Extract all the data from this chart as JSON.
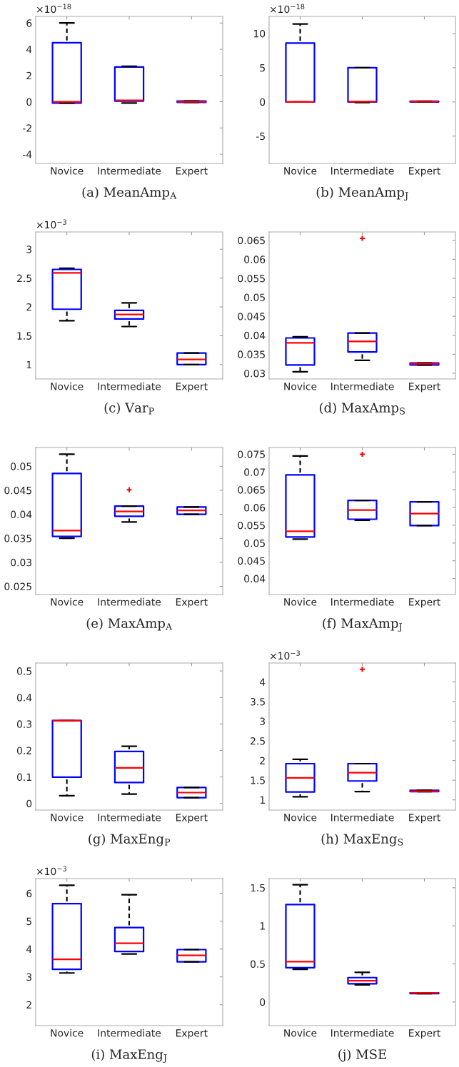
{
  "chart_data": [
    {
      "type": "box",
      "title": "(a) MeanAmp$_{A}$",
      "annotations": [
        "×10$^{−18}$"
      ],
      "categories": [
        "Novice",
        "Intermediate",
        "Expert"
      ],
      "ylim": [
        -4.7,
        6.5
      ],
      "yticks": [
        -4,
        -2,
        0,
        2,
        4,
        6
      ],
      "grid": false,
      "series": [
        {
          "color": "#0000ff",
          "boxes": [
            {
              "low": -0.1,
              "q1": -0.1,
              "median": 0,
              "q3": 4.5,
              "high": 6
            },
            {
              "low": -0.1,
              "q1": 0.05,
              "median": 0.1,
              "q3": 2.65,
              "high": 2.7
            },
            {
              "low": -0.05,
              "q1": -0.05,
              "median": 0,
              "q3": 0.05,
              "high": 0.05
            }
          ]
        }
      ]
    },
    {
      "type": "box",
      "title": "(b) MeanAmp$_{J}$",
      "annotations": [
        "×10$^{−18}$"
      ],
      "categories": [
        "Novice",
        "Intermediate",
        "Expert"
      ],
      "ylim": [
        -9,
        12.5
      ],
      "yticks": [
        -5,
        0,
        5,
        10
      ],
      "grid": false,
      "series": [
        {
          "color": "#0000ff",
          "boxes": [
            {
              "low": 0,
              "q1": 0,
              "median": 0,
              "q3": 8.6,
              "high": 11.4
            },
            {
              "low": -0.1,
              "q1": 0,
              "median": 0.05,
              "q3": 5,
              "high": 5
            },
            {
              "low": 0,
              "q1": 0,
              "median": 0.05,
              "q3": 0.1,
              "high": 0.1
            }
          ]
        }
      ]
    },
    {
      "type": "box",
      "title": "(c) Var$_{P}$",
      "annotations": [
        "×10$^{−3}$"
      ],
      "categories": [
        "Novice",
        "Intermediate",
        "Expert"
      ],
      "ylim": [
        0.75,
        3.3
      ],
      "yticks": [
        1,
        1.5,
        2,
        2.5,
        3
      ],
      "grid": false,
      "series": [
        {
          "color": "#0000ff",
          "boxes": [
            {
              "low": 1.76,
              "q1": 1.96,
              "median": 2.59,
              "q3": 2.65,
              "high": 2.67
            },
            {
              "low": 1.66,
              "q1": 1.79,
              "median": 1.87,
              "q3": 1.94,
              "high": 2.07
            },
            {
              "low": 1.0,
              "q1": 1.0,
              "median": 1.09,
              "q3": 1.2,
              "high": 1.2
            }
          ]
        }
      ]
    },
    {
      "type": "box",
      "title": "(d) MaxAmp$_{S}$",
      "categories": [
        "Novice",
        "Intermediate",
        "Expert"
      ],
      "ylim": [
        0.0285,
        0.0672
      ],
      "yticks": [
        0.03,
        0.035,
        0.04,
        0.045,
        0.05,
        0.055,
        0.06,
        0.065
      ],
      "grid": false,
      "series": [
        {
          "color": "#0000ff",
          "boxes": [
            {
              "low": 0.0304,
              "q1": 0.0322,
              "median": 0.038,
              "q3": 0.0393,
              "high": 0.0396
            },
            {
              "low": 0.0334,
              "q1": 0.0356,
              "median": 0.0384,
              "q3": 0.0406,
              "high": 0.0406,
              "outliers": [
                0.0655
              ]
            },
            {
              "low": 0.0322,
              "q1": 0.0322,
              "median": 0.0325,
              "q3": 0.0327,
              "high": 0.0327
            }
          ]
        }
      ]
    },
    {
      "type": "box",
      "title": "(e) MaxAmp$_{A}$",
      "categories": [
        "Novice",
        "Intermediate",
        "Expert"
      ],
      "ylim": [
        0.0233,
        0.0539
      ],
      "yticks": [
        0.025,
        0.03,
        0.035,
        0.04,
        0.045,
        0.05
      ],
      "grid": false,
      "series": [
        {
          "color": "#0000ff",
          "boxes": [
            {
              "low": 0.035,
              "q1": 0.0354,
              "median": 0.0366,
              "q3": 0.0485,
              "high": 0.0525
            },
            {
              "low": 0.0384,
              "q1": 0.0396,
              "median": 0.0406,
              "q3": 0.0417,
              "high": 0.0417,
              "outliers": [
                0.0451
              ]
            },
            {
              "low": 0.04,
              "q1": 0.04,
              "median": 0.0408,
              "q3": 0.0415,
              "high": 0.0415
            }
          ]
        }
      ]
    },
    {
      "type": "box",
      "title": "(f) MaxAmp$_{J}$",
      "categories": [
        "Novice",
        "Intermediate",
        "Expert"
      ],
      "ylim": [
        0.0355,
        0.0769
      ],
      "yticks": [
        0.04,
        0.045,
        0.05,
        0.055,
        0.06,
        0.065,
        0.07,
        0.075
      ],
      "grid": false,
      "series": [
        {
          "color": "#0000ff",
          "boxes": [
            {
              "low": 0.0511,
              "q1": 0.0517,
              "median": 0.0533,
              "q3": 0.0692,
              "high": 0.0745
            },
            {
              "low": 0.0564,
              "q1": 0.0567,
              "median": 0.0593,
              "q3": 0.062,
              "high": 0.062,
              "outliers": [
                0.075
              ]
            },
            {
              "low": 0.0549,
              "q1": 0.0549,
              "median": 0.0583,
              "q3": 0.0616,
              "high": 0.0616
            }
          ]
        }
      ]
    },
    {
      "type": "box",
      "title": "(g) MaxEng$_{P}$",
      "categories": [
        "Novice",
        "Intermediate",
        "Expert"
      ],
      "ylim": [
        -0.025,
        0.53
      ],
      "yticks": [
        0,
        0.1,
        0.2,
        0.3,
        0.4,
        0.5
      ],
      "grid": false,
      "series": [
        {
          "color": "#0000ff",
          "boxes": [
            {
              "low": 0.029,
              "q1": 0.099,
              "median": 0.313,
              "q3": 0.313,
              "high": 0.313
            },
            {
              "low": 0.035,
              "q1": 0.079,
              "median": 0.134,
              "q3": 0.196,
              "high": 0.216
            },
            {
              "low": 0.022,
              "q1": 0.022,
              "median": 0.041,
              "q3": 0.06,
              "high": 0.06
            }
          ]
        }
      ]
    },
    {
      "type": "box",
      "title": "(h) MaxEng$_{S}$",
      "annotations": [
        "×10$^{−3}$"
      ],
      "categories": [
        "Novice",
        "Intermediate",
        "Expert"
      ],
      "ylim": [
        0.74,
        4.48
      ],
      "yticks": [
        1,
        1.5,
        2,
        2.5,
        3,
        3.5,
        4
      ],
      "grid": false,
      "series": [
        {
          "color": "#0000ff",
          "boxes": [
            {
              "low": 1.08,
              "q1": 1.2,
              "median": 1.56,
              "q3": 1.92,
              "high": 2.03
            },
            {
              "low": 1.21,
              "q1": 1.48,
              "median": 1.69,
              "q3": 1.92,
              "high": 1.92,
              "outliers": [
                4.32
              ]
            },
            {
              "low": 1.21,
              "q1": 1.21,
              "median": 1.22,
              "q3": 1.24,
              "high": 1.24
            }
          ]
        }
      ]
    },
    {
      "type": "box",
      "title": "(i) MaxEng$_{J}$",
      "annotations": [
        "×10$^{−3}$"
      ],
      "categories": [
        "Novice",
        "Intermediate",
        "Expert"
      ],
      "ylim": [
        1.25,
        6.53
      ],
      "yticks": [
        2,
        3,
        4,
        5,
        6
      ],
      "grid": false,
      "series": [
        {
          "color": "#0000ff",
          "boxes": [
            {
              "low": 3.14,
              "q1": 3.27,
              "median": 3.63,
              "q3": 5.63,
              "high": 6.29
            },
            {
              "low": 3.82,
              "q1": 3.91,
              "median": 4.21,
              "q3": 4.77,
              "high": 5.95
            },
            {
              "low": 3.54,
              "q1": 3.54,
              "median": 3.77,
              "q3": 3.98,
              "high": 3.98
            }
          ]
        }
      ]
    },
    {
      "type": "box",
      "title": "(j) MSE",
      "categories": [
        "Novice",
        "Intermediate",
        "Expert"
      ],
      "ylim": [
        -0.31,
        1.62
      ],
      "yticks": [
        0,
        0.5,
        1,
        1.5
      ],
      "grid": false,
      "series": [
        {
          "color": "#0000ff",
          "boxes": [
            {
              "low": 0.43,
              "q1": 0.45,
              "median": 0.53,
              "q3": 1.28,
              "high": 1.54
            },
            {
              "low": 0.225,
              "q1": 0.24,
              "median": 0.28,
              "q3": 0.32,
              "high": 0.39
            },
            {
              "low": 0.11,
              "q1": 0.11,
              "median": 0.12,
              "q3": 0.12,
              "high": 0.12
            }
          ]
        }
      ]
    }
  ]
}
